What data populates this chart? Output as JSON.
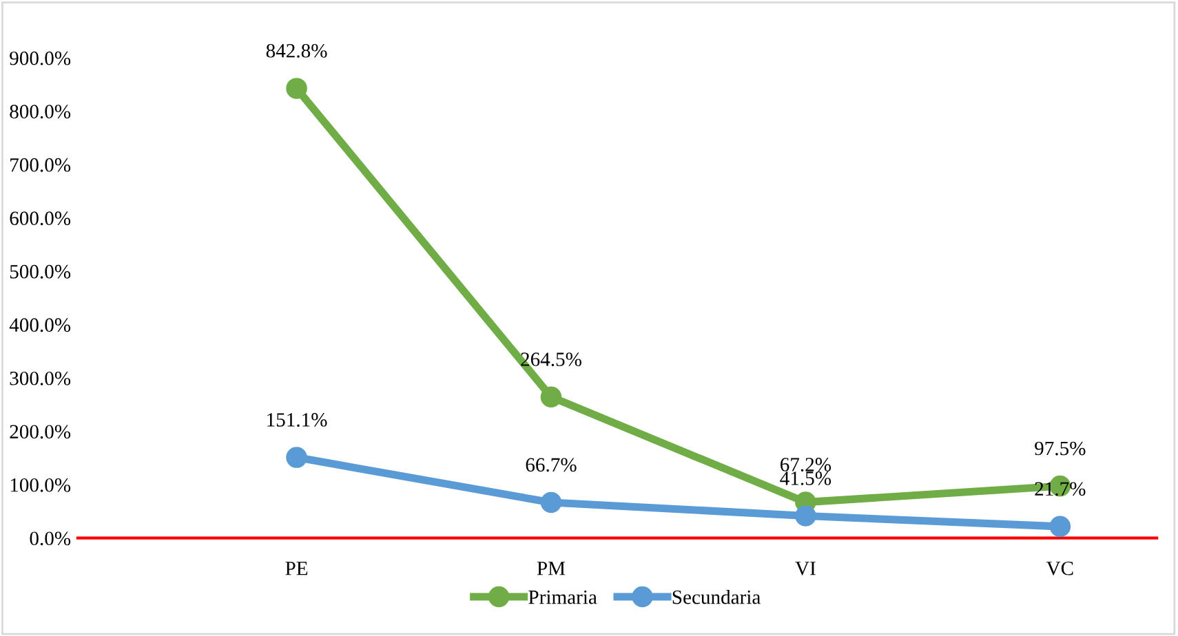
{
  "chart_data": {
    "type": "line",
    "categories": [
      "PE",
      "PM",
      "VI",
      "VC"
    ],
    "series": [
      {
        "name": "Primaria",
        "color": "#70ad47",
        "values": [
          842.8,
          264.5,
          67.2,
          97.5
        ],
        "value_labels": [
          "842.8%",
          "264.5%",
          "67.2%",
          "97.5%"
        ]
      },
      {
        "name": "Secundaria",
        "color": "#5b9bd5",
        "values": [
          151.1,
          66.7,
          41.5,
          21.7
        ],
        "value_labels": [
          "151.1%",
          "66.7%",
          "41.5%",
          "21.7%"
        ]
      }
    ],
    "ylim": [
      0,
      900
    ],
    "yticks": [
      {
        "value": 0,
        "label": "0.0%"
      },
      {
        "value": 100,
        "label": "100.0%"
      },
      {
        "value": 200,
        "label": "200.0%"
      },
      {
        "value": 300,
        "label": "300.0%"
      },
      {
        "value": 400,
        "label": "400.0%"
      },
      {
        "value": 500,
        "label": "500.0%"
      },
      {
        "value": 600,
        "label": "600.0%"
      },
      {
        "value": 700,
        "label": "700.0%"
      },
      {
        "value": 800,
        "label": "800.0%"
      },
      {
        "value": 900,
        "label": "900.0%"
      }
    ],
    "grid": false,
    "legend": "bottom",
    "marker": "circle",
    "line_style": "solid"
  }
}
